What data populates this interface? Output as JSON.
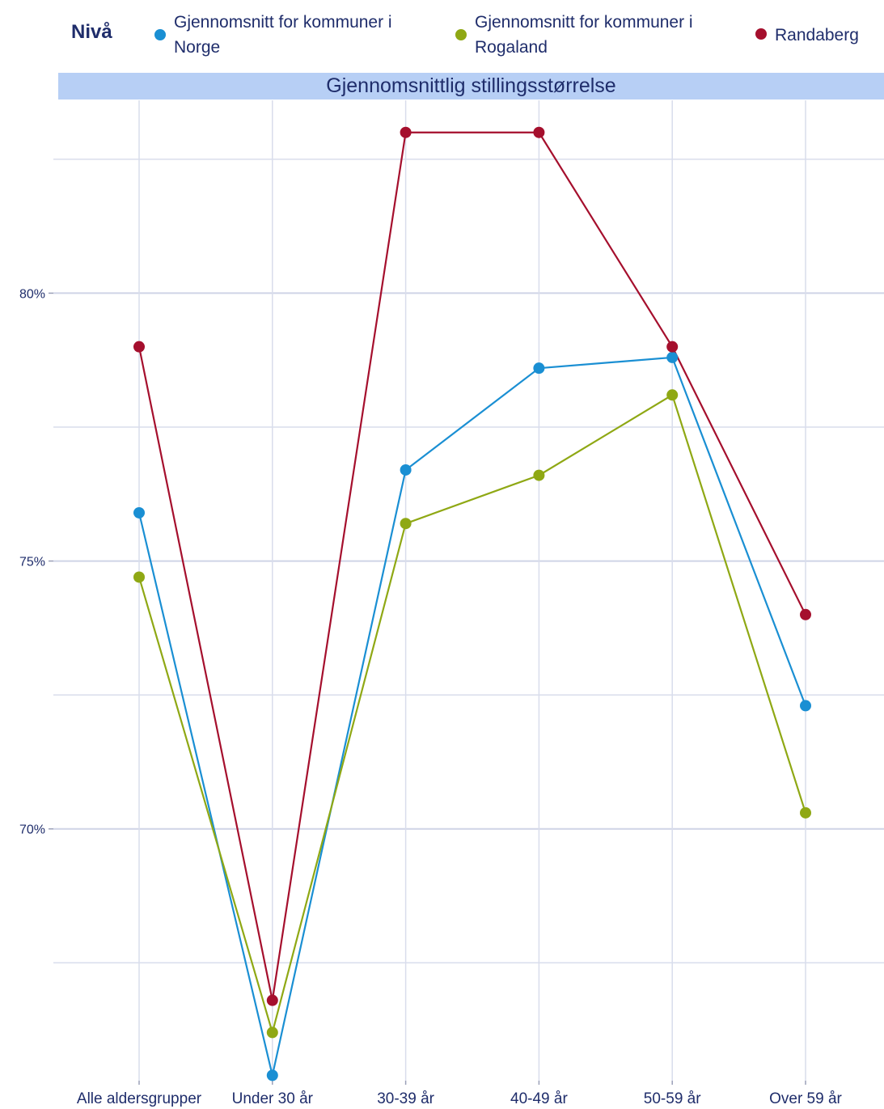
{
  "legend": {
    "title": "Nivå",
    "items": [
      {
        "label": "Gjennomsnitt for kommuner i Norge",
        "color": "#1a8fd3"
      },
      {
        "label": "Gjennomsnitt for kommuner i Rogaland",
        "color": "#8fa814"
      },
      {
        "label": "Randaberg",
        "color": "#a50f2d"
      }
    ]
  },
  "chart_data": {
    "type": "line",
    "title": "Gjennomsnittlig stillingsstørrelse",
    "xlabel": "",
    "ylabel": "",
    "categories": [
      "Alle aldersgrupper",
      "Under 30 år",
      "30-39 år",
      "40-49 år",
      "50-59 år",
      "Over 59 år"
    ],
    "ylim": [
      65.3,
      83.6
    ],
    "yticks": [
      70,
      75,
      80
    ],
    "yticklabels": [
      "70%",
      "75%",
      "80%"
    ],
    "grid": true,
    "legend_position": "top",
    "series": [
      {
        "name": "Gjennomsnitt for kommuner i Norge",
        "color": "#1a8fd3",
        "values": [
          75.9,
          65.4,
          76.7,
          78.6,
          78.8,
          72.3
        ]
      },
      {
        "name": "Gjennomsnitt for kommuner i Rogaland",
        "color": "#8fa814",
        "values": [
          74.7,
          66.2,
          75.7,
          76.6,
          78.1,
          70.3
        ]
      },
      {
        "name": "Randaberg",
        "color": "#a50f2d",
        "values": [
          79.0,
          66.8,
          83.0,
          83.0,
          79.0,
          74.0
        ]
      }
    ]
  }
}
